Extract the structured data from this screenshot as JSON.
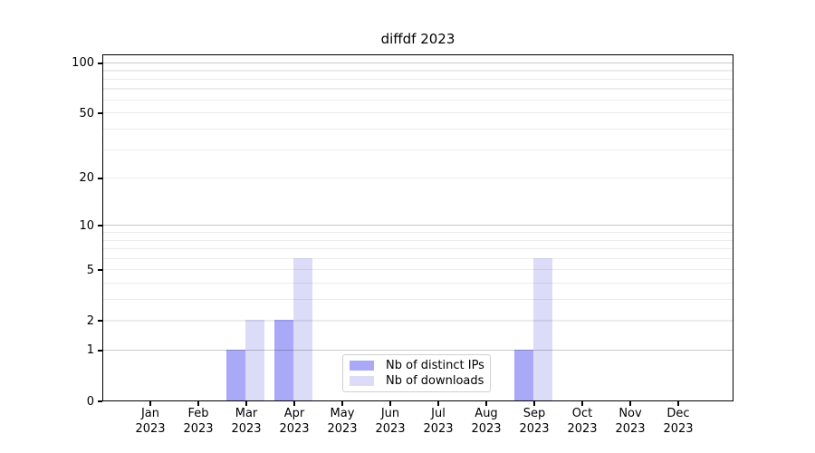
{
  "chart_data": {
    "type": "bar",
    "title": "diffdf 2023",
    "year_label": "2023",
    "categories": [
      "Jan",
      "Feb",
      "Mar",
      "Apr",
      "May",
      "Jun",
      "Jul",
      "Aug",
      "Sep",
      "Oct",
      "Nov",
      "Dec"
    ],
    "series": [
      {
        "name": "Nb of distinct IPs",
        "color": "#a9a9f7",
        "values": [
          0,
          0,
          1,
          2,
          0,
          0,
          0,
          0,
          1,
          0,
          0,
          0
        ]
      },
      {
        "name": "Nb of downloads",
        "color": "#dcdcf9",
        "values": [
          0,
          0,
          2,
          6,
          0,
          0,
          0,
          0,
          6,
          0,
          0,
          0
        ]
      }
    ],
    "y_axis": {
      "scale": "log10(1+v)",
      "tick_labels": [
        0,
        1,
        2,
        5,
        10,
        20,
        50,
        100
      ],
      "minor_gridlines": [
        2,
        3,
        4,
        5,
        6,
        7,
        8,
        9,
        20,
        30,
        40,
        50,
        60,
        70,
        80,
        90
      ],
      "major_gridlines": [
        1,
        10,
        100
      ],
      "ylim": [
        0,
        113
      ]
    },
    "x_axis": {
      "label_line2": "2023"
    },
    "legend": {
      "position": "lower-center"
    },
    "grid": "horizontal",
    "colors": {
      "axis": "#000000",
      "grid_minor": "#ececec",
      "grid_major": "#c9c9c9",
      "background": "#ffffff"
    }
  }
}
